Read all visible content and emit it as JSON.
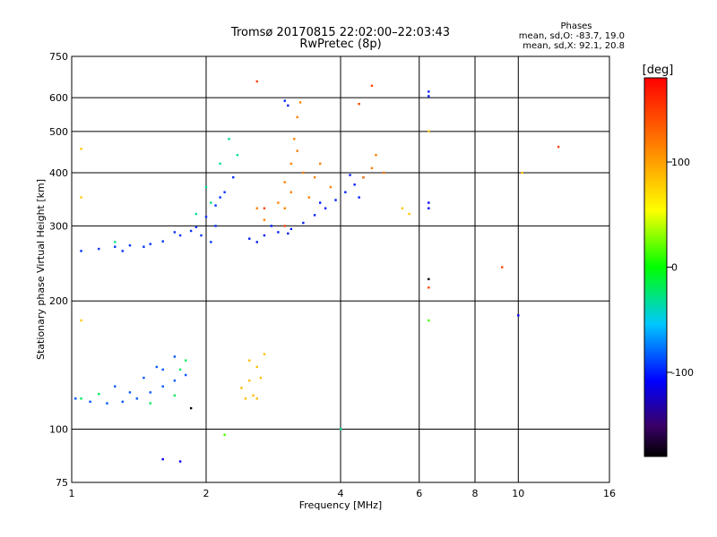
{
  "chart_data": {
    "type": "scatter",
    "title": "Tromsø 20170815 22:02:00–22:03:43",
    "subtitle": "RwPretec (8p)",
    "xlabel": "Frequency [MHz]",
    "ylabel": "Stationary phase Virtual Height [km]",
    "x_scale": "log",
    "y_scale": "log",
    "xlim": [
      1,
      16
    ],
    "ylim": [
      75,
      750
    ],
    "x_ticks": [
      1,
      2,
      4,
      6,
      8,
      10,
      16
    ],
    "y_ticks": [
      75,
      100,
      200,
      300,
      400,
      500,
      600,
      750
    ],
    "grid": true,
    "stats": {
      "heading": "Phases",
      "line_o": "mean, sd,O: -83.7, 19.0",
      "line_x": "mean, sd,X:  92.1, 20.8"
    },
    "colorbar": {
      "label": "[deg]",
      "range": [
        -180,
        180
      ],
      "ticks": [
        100,
        0,
        -100
      ],
      "colormap": "rainbow"
    },
    "clusters": [
      {
        "name": "",
        "phase": -95,
        "points": [
          [
            1.05,
            262
          ],
          [
            1.15,
            265
          ],
          [
            1.25,
            268
          ],
          [
            1.35,
            270
          ],
          [
            1.5,
            272
          ],
          [
            1.6,
            276
          ],
          [
            1.75,
            285
          ],
          [
            1.9,
            298
          ],
          [
            2.0,
            315
          ],
          [
            2.1,
            335
          ],
          [
            2.2,
            360
          ],
          [
            2.1,
            300
          ],
          [
            1.95,
            285
          ],
          [
            1.3,
            262
          ],
          [
            1.7,
            290
          ],
          [
            2.05,
            275
          ],
          [
            2.3,
            390
          ],
          [
            2.15,
            350
          ],
          [
            1.45,
            268
          ],
          [
            1.85,
            292
          ]
        ]
      },
      {
        "name": "",
        "phase": -100,
        "points": [
          [
            2.5,
            280
          ],
          [
            2.7,
            285
          ],
          [
            2.9,
            290
          ],
          [
            3.1,
            295
          ],
          [
            3.3,
            305
          ],
          [
            3.5,
            318
          ],
          [
            3.7,
            330
          ],
          [
            3.9,
            345
          ],
          [
            4.1,
            360
          ],
          [
            4.3,
            375
          ],
          [
            4.5,
            390
          ],
          [
            2.8,
            300
          ],
          [
            3.6,
            340
          ],
          [
            4.2,
            395
          ],
          [
            2.6,
            275
          ],
          [
            3.05,
            288
          ],
          [
            4.4,
            350
          ],
          [
            3.0,
            590
          ],
          [
            3.05,
            575
          ],
          [
            6.3,
            620
          ],
          [
            6.3,
            605
          ]
        ]
      },
      {
        "name": "",
        "phase": -30,
        "points": [
          [
            2.0,
            370
          ],
          [
            2.15,
            420
          ],
          [
            2.25,
            480
          ],
          [
            2.05,
            340
          ],
          [
            1.9,
            320
          ],
          [
            2.35,
            440
          ],
          [
            1.25,
            275
          ],
          [
            4.0,
            100
          ]
        ]
      },
      {
        "name": "",
        "phase": 115,
        "points": [
          [
            2.9,
            340
          ],
          [
            3.0,
            380
          ],
          [
            3.1,
            420
          ],
          [
            3.15,
            480
          ],
          [
            3.2,
            540
          ],
          [
            3.25,
            585
          ],
          [
            3.1,
            360
          ],
          [
            3.2,
            450
          ],
          [
            3.0,
            330
          ],
          [
            3.3,
            400
          ],
          [
            3.5,
            390
          ],
          [
            3.8,
            370
          ],
          [
            4.5,
            390
          ],
          [
            4.7,
            410
          ],
          [
            5.0,
            400
          ],
          [
            4.8,
            440
          ],
          [
            2.6,
            330
          ],
          [
            2.7,
            310
          ],
          [
            3.4,
            350
          ],
          [
            3.6,
            420
          ]
        ]
      },
      {
        "name": "",
        "phase": 85,
        "points": [
          [
            2.4,
            125
          ],
          [
            2.5,
            130
          ],
          [
            2.6,
            140
          ],
          [
            2.55,
            120
          ],
          [
            2.45,
            118
          ],
          [
            2.65,
            132
          ],
          [
            2.7,
            150
          ],
          [
            2.5,
            145
          ],
          [
            2.6,
            118
          ]
        ]
      },
      {
        "name": "",
        "phase": -85,
        "points": [
          [
            1.02,
            118
          ],
          [
            1.1,
            116
          ],
          [
            1.2,
            115
          ],
          [
            1.3,
            116
          ],
          [
            1.4,
            118
          ],
          [
            1.5,
            122
          ],
          [
            1.6,
            126
          ],
          [
            1.7,
            130
          ],
          [
            1.8,
            134
          ],
          [
            1.25,
            126
          ],
          [
            1.45,
            132
          ],
          [
            1.55,
            140
          ],
          [
            1.7,
            148
          ],
          [
            1.6,
            138
          ],
          [
            1.35,
            122
          ]
        ]
      },
      {
        "name": "",
        "phase": -20,
        "points": [
          [
            1.05,
            118
          ],
          [
            1.15,
            121
          ],
          [
            1.5,
            115
          ],
          [
            1.7,
            120
          ],
          [
            1.75,
            138
          ],
          [
            1.8,
            145
          ]
        ]
      },
      {
        "name": "",
        "phase": 145,
        "points": [
          [
            2.7,
            330
          ],
          [
            3.0,
            300
          ],
          [
            4.4,
            580
          ],
          [
            4.7,
            640
          ],
          [
            6.3,
            215
          ],
          [
            12.3,
            460
          ],
          [
            2.6,
            655
          ],
          [
            9.2,
            240
          ]
        ]
      },
      {
        "name": "",
        "phase": -180,
        "points": [
          [
            6.3,
            225
          ],
          [
            1.85,
            112
          ]
        ]
      },
      {
        "name": "",
        "phase": -110,
        "points": [
          [
            1.6,
            85
          ],
          [
            1.75,
            84
          ],
          [
            10.0,
            185
          ],
          [
            6.3,
            340
          ],
          [
            6.3,
            330
          ]
        ]
      },
      {
        "name": "",
        "phase": 15,
        "points": [
          [
            6.3,
            180
          ],
          [
            2.2,
            97
          ]
        ]
      },
      {
        "name": "",
        "phase": 80,
        "points": [
          [
            1.05,
            455
          ],
          [
            1.05,
            350
          ],
          [
            1.05,
            180
          ],
          [
            6.3,
            500
          ],
          [
            5.5,
            330
          ],
          [
            5.7,
            320
          ],
          [
            10.2,
            400
          ]
        ]
      }
    ]
  }
}
